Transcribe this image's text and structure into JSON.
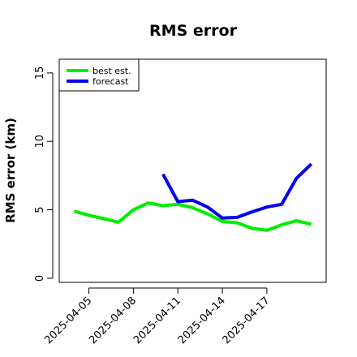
{
  "chart_data": {
    "type": "line",
    "title": "RMS error",
    "xlabel": "",
    "ylabel": "RMS error (km)",
    "x_dates": [
      "2025-04-04",
      "2025-04-05",
      "2025-04-06",
      "2025-04-07",
      "2025-04-08",
      "2025-04-09",
      "2025-04-10",
      "2025-04-11",
      "2025-04-12",
      "2025-04-13",
      "2025-04-14",
      "2025-04-15",
      "2025-04-16",
      "2025-04-17",
      "2025-04-18",
      "2025-04-19",
      "2025-04-20"
    ],
    "xlim": [
      "2025-04-03",
      "2025-04-21"
    ],
    "x_ticks": [
      "2025-04-05",
      "2025-04-08",
      "2025-04-11",
      "2025-04-14",
      "2025-04-17"
    ],
    "ylim": [
      -0.3,
      16
    ],
    "y_ticks": [
      0,
      5,
      10,
      15
    ],
    "grid": false,
    "legend_position": "top-left",
    "series": [
      {
        "name": "best est.",
        "color": "#00ee00",
        "values": [
          4.9,
          4.6,
          4.35,
          4.1,
          5.0,
          5.5,
          5.3,
          5.4,
          5.15,
          4.7,
          4.15,
          4.05,
          3.65,
          3.5,
          3.9,
          4.2,
          3.95
        ]
      },
      {
        "name": "forecast",
        "color": "#0000ee",
        "values": [
          null,
          null,
          null,
          null,
          null,
          null,
          7.6,
          5.6,
          5.7,
          5.2,
          4.4,
          4.45,
          4.85,
          5.2,
          5.4,
          7.3,
          8.35
        ]
      }
    ]
  }
}
